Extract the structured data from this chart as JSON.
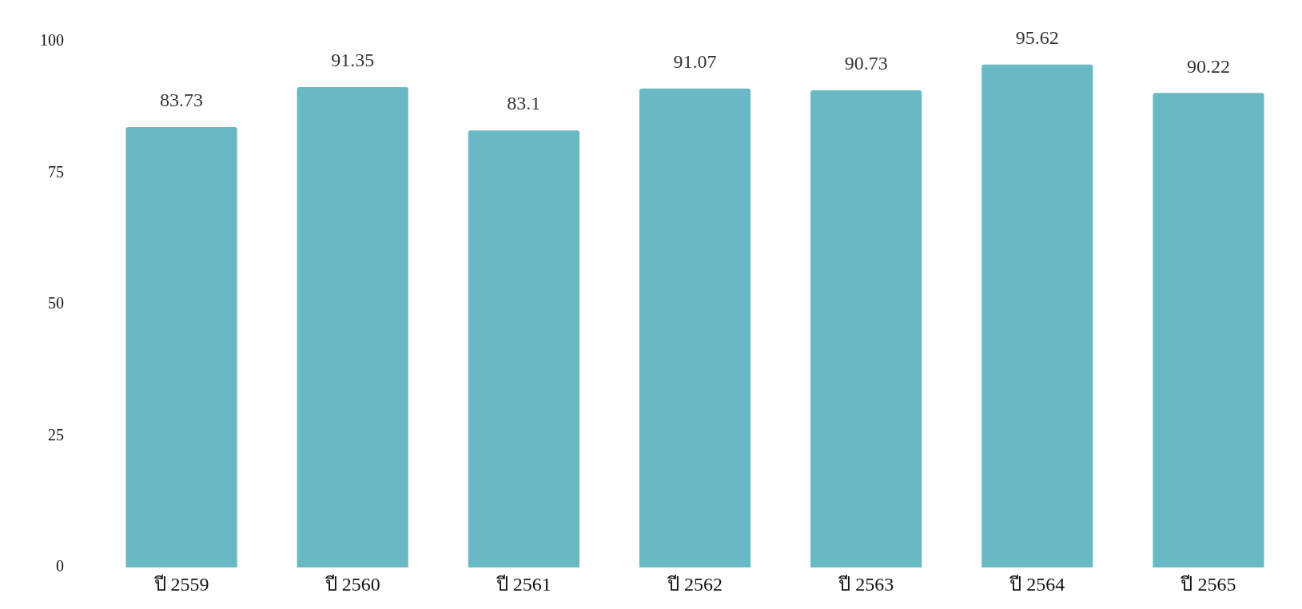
{
  "chart_data": {
    "type": "bar",
    "categories": [
      "ปี 2559",
      "ปี 2560",
      "ปี 2561",
      "ปี 2562",
      "ปี 2563",
      "ปี 2564",
      "ปี 2565"
    ],
    "values": [
      83.73,
      91.35,
      83.1,
      91.07,
      90.73,
      95.62,
      90.22
    ],
    "color": "#69b9c4",
    "ylim": [
      0,
      100
    ],
    "yticks": [
      0,
      25,
      50,
      75,
      100
    ],
    "grid": false,
    "legend": false,
    "data_labels": true
  }
}
